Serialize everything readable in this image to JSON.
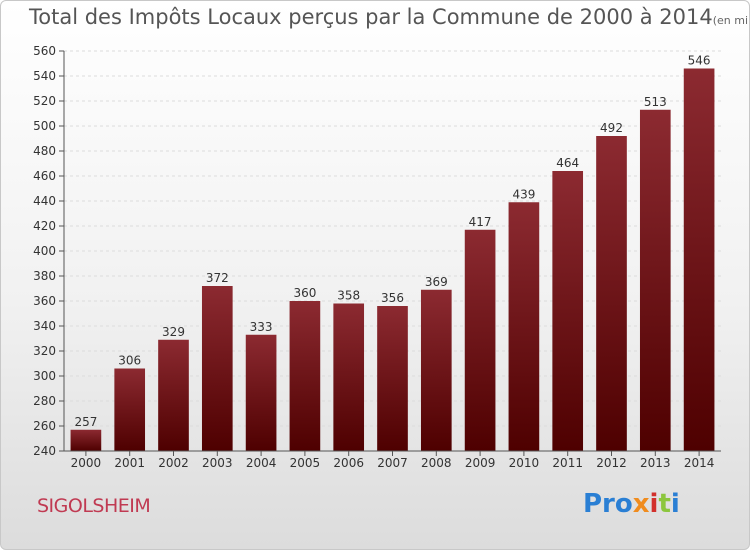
{
  "title": "Total des Impôts Locaux perçus par la Commune de 2000 à 2014",
  "title_unit": "(en milliers d'€)",
  "commune": "SIGOLSHEIM",
  "logo": {
    "p1": "Pro",
    "p2": "x",
    "p3": "i",
    "p4": "t",
    "p5": "i"
  },
  "colors": {
    "bar_top": "#8c2a31",
    "bar_bottom": "#4e0000",
    "commune": "#c03a52"
  },
  "chart_data": {
    "type": "bar",
    "title": "Total des Impôts Locaux perçus par la Commune de 2000 à 2014",
    "xlabel": "",
    "ylabel": "",
    "categories": [
      "2000",
      "2001",
      "2002",
      "2003",
      "2004",
      "2005",
      "2006",
      "2007",
      "2008",
      "2009",
      "2010",
      "2011",
      "2012",
      "2013",
      "2014"
    ],
    "values": [
      257,
      306,
      329,
      372,
      333,
      360,
      358,
      356,
      369,
      417,
      439,
      464,
      492,
      513,
      546
    ],
    "ylim": [
      240,
      560
    ],
    "yticks": [
      240,
      260,
      280,
      300,
      320,
      340,
      360,
      380,
      400,
      420,
      440,
      460,
      480,
      500,
      520,
      540,
      560
    ],
    "grid": true
  }
}
